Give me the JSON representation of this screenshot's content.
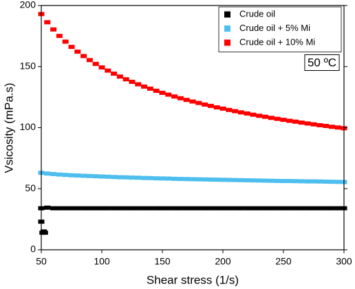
{
  "chart_data": {
    "type": "scatter",
    "x_label": "Shear stress (1/s)",
    "y_label": "Vsicosity (mPa.s)",
    "annotation": "50 ºC",
    "xlim": [
      50,
      300
    ],
    "ylim": [
      0,
      200
    ],
    "xticks": [
      50,
      100,
      150,
      200,
      250,
      300
    ],
    "yticks": [
      0,
      50,
      100,
      150,
      200
    ],
    "legend": "upper-right",
    "series": [
      {
        "name": "Crude oil",
        "color": "#000000",
        "x": [
          50,
          51,
          52,
          53,
          50,
          55,
          60,
          65,
          70,
          75,
          80,
          85,
          90,
          95,
          100,
          105,
          110,
          115,
          120,
          125,
          130,
          135,
          140,
          145,
          150,
          155,
          160,
          165,
          170,
          175,
          180,
          185,
          190,
          195,
          200,
          205,
          210,
          215,
          220,
          225,
          230,
          235,
          240,
          245,
          250,
          255,
          260,
          265,
          270,
          275,
          280,
          285,
          290,
          295,
          300
        ],
        "values": [
          23,
          14,
          15,
          14,
          34,
          34.5,
          34,
          34,
          34,
          34,
          34,
          34,
          34,
          34,
          34,
          34,
          34,
          34,
          34,
          34,
          34,
          34,
          34,
          34,
          34,
          34,
          34,
          34,
          34,
          34,
          34,
          34,
          34,
          34,
          34,
          34,
          34,
          34,
          34,
          34,
          34,
          34,
          34,
          34,
          34,
          34,
          34,
          34,
          34,
          34,
          34,
          34,
          34,
          34,
          34
        ]
      },
      {
        "name": "Crude oil + 5% Mi",
        "color": "#4dbeee",
        "x": [
          50,
          55,
          60,
          65,
          70,
          75,
          80,
          85,
          90,
          95,
          100,
          105,
          110,
          115,
          120,
          125,
          130,
          135,
          140,
          145,
          150,
          155,
          160,
          165,
          170,
          175,
          180,
          185,
          190,
          195,
          200,
          205,
          210,
          215,
          220,
          225,
          230,
          235,
          240,
          245,
          250,
          255,
          260,
          265,
          270,
          275,
          280,
          285,
          290,
          295,
          300
        ],
        "values": [
          63,
          62.4,
          62,
          61.6,
          61.3,
          61,
          60.8,
          60.6,
          60.4,
          60.2,
          60,
          59.8,
          59.6,
          59.4,
          59.3,
          59.1,
          59,
          58.8,
          58.7,
          58.5,
          58.4,
          58.3,
          58.1,
          58,
          57.9,
          57.8,
          57.7,
          57.6,
          57.5,
          57.4,
          57.3,
          57.2,
          57.1,
          57,
          56.9,
          56.8,
          56.7,
          56.6,
          56.5,
          56.4,
          56.3,
          56.3,
          56.2,
          56.1,
          56,
          56,
          55.9,
          55.8,
          55.7,
          55.6,
          55.5
        ]
      },
      {
        "name": "Crude oil + 10% Mi",
        "color": "#ff0000",
        "x": [
          50,
          55,
          60,
          65,
          70,
          75,
          80,
          85,
          90,
          95,
          100,
          105,
          110,
          115,
          120,
          125,
          130,
          135,
          140,
          145,
          150,
          155,
          160,
          165,
          170,
          175,
          180,
          185,
          190,
          195,
          200,
          205,
          210,
          215,
          220,
          225,
          230,
          235,
          240,
          245,
          250,
          255,
          260,
          265,
          270,
          275,
          280,
          285,
          290,
          295,
          300
        ],
        "values": [
          193,
          186.3,
          180.4,
          175.1,
          170.4,
          166.1,
          162.2,
          158.6,
          155.3,
          152.2,
          149.3,
          146.7,
          144.2,
          141.8,
          139.6,
          137.5,
          135.5,
          133.6,
          131.9,
          130.2,
          128.5,
          127,
          125.5,
          124.1,
          122.7,
          121.4,
          120.2,
          118.9,
          117.8,
          116.6,
          115.6,
          114.5,
          113.5,
          112.5,
          111.6,
          110.6,
          109.7,
          108.9,
          108,
          107.2,
          106.4,
          105.6,
          104.9,
          104.1,
          103.4,
          102.7,
          102,
          101.4,
          100.7,
          100.1,
          99.5
        ]
      }
    ]
  }
}
